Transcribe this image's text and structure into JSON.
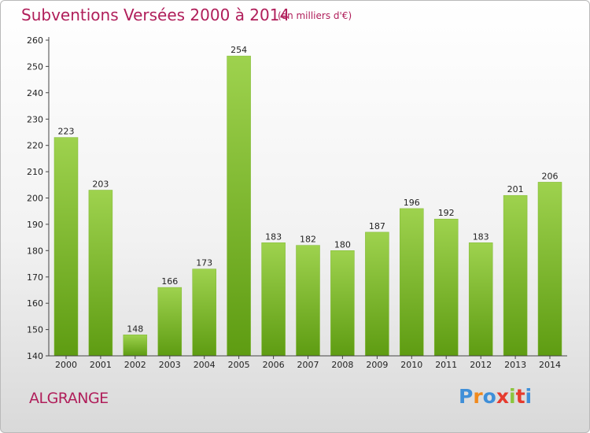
{
  "header": {
    "title": "Subventions Versées 2000 à 2014",
    "subtitle": "(en milliers d'€)"
  },
  "footer": {
    "commune": "ALGRANGE",
    "logo_text": "Proxiti"
  },
  "colors": {
    "accent": "#b01e5a",
    "bar_light": "#9ed24e",
    "bar_dark": "#5e9c12",
    "logo_letters": [
      "#3f8fd8",
      "#f18a1c",
      "#3f8fd8",
      "#e63b2e",
      "#8cc63e",
      "#e63b2e",
      "#3f8fd8"
    ]
  },
  "chart_data": {
    "type": "bar",
    "title": "Subventions Versées 2000 à 2014",
    "subtitle": "(en milliers d'€)",
    "categories": [
      "2000",
      "2001",
      "2002",
      "2003",
      "2004",
      "2005",
      "2006",
      "2007",
      "2008",
      "2009",
      "2010",
      "2011",
      "2012",
      "2013",
      "2014"
    ],
    "values": [
      223,
      203,
      148,
      166,
      173,
      254,
      183,
      182,
      180,
      187,
      196,
      192,
      183,
      201,
      206
    ],
    "ylim": [
      140,
      260
    ],
    "yticks": [
      140,
      150,
      160,
      170,
      180,
      190,
      200,
      210,
      220,
      230,
      240,
      250,
      260
    ],
    "grid": false,
    "data_labels": true
  }
}
